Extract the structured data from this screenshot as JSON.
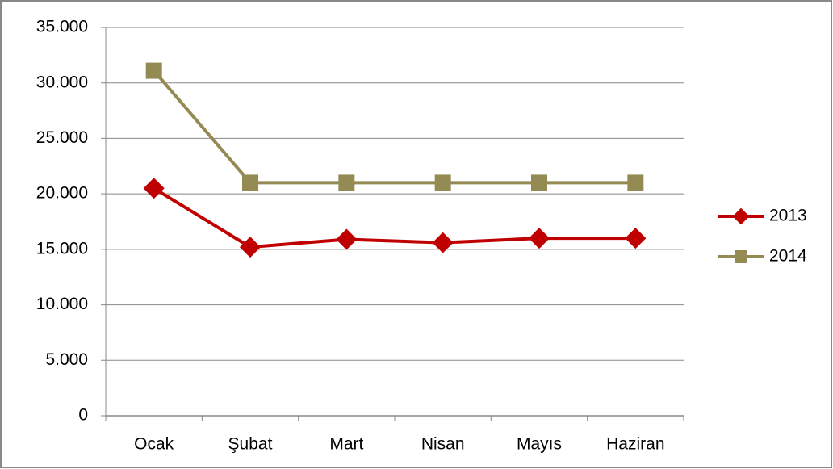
{
  "chart_data": {
    "type": "line",
    "categories": [
      "Ocak",
      "Şubat",
      "Mart",
      "Nisan",
      "Mayıs",
      "Haziran"
    ],
    "series": [
      {
        "name": "2013",
        "color": "#c00000",
        "marker": "diamond",
        "values": [
          20500,
          15200,
          15900,
          15600,
          16000,
          16000
        ]
      },
      {
        "name": "2014",
        "color": "#948a54",
        "marker": "square",
        "values": [
          31100,
          21000,
          21000,
          21000,
          21000,
          21000
        ]
      }
    ],
    "ylim": [
      0,
      35000
    ],
    "yticks": [
      0,
      {
        "value": 5000,
        "label": "5.000"
      },
      {
        "value": 10000,
        "label": "10.000"
      },
      {
        "value": 15000,
        "label": "15.000"
      },
      {
        "value": 20000,
        "label": "20.000"
      },
      {
        "value": 25000,
        "label": "25.000"
      },
      {
        "value": 30000,
        "label": "30.000"
      },
      {
        "value": 35000,
        "label": "35.000"
      }
    ],
    "grid": true,
    "legend": "right"
  }
}
